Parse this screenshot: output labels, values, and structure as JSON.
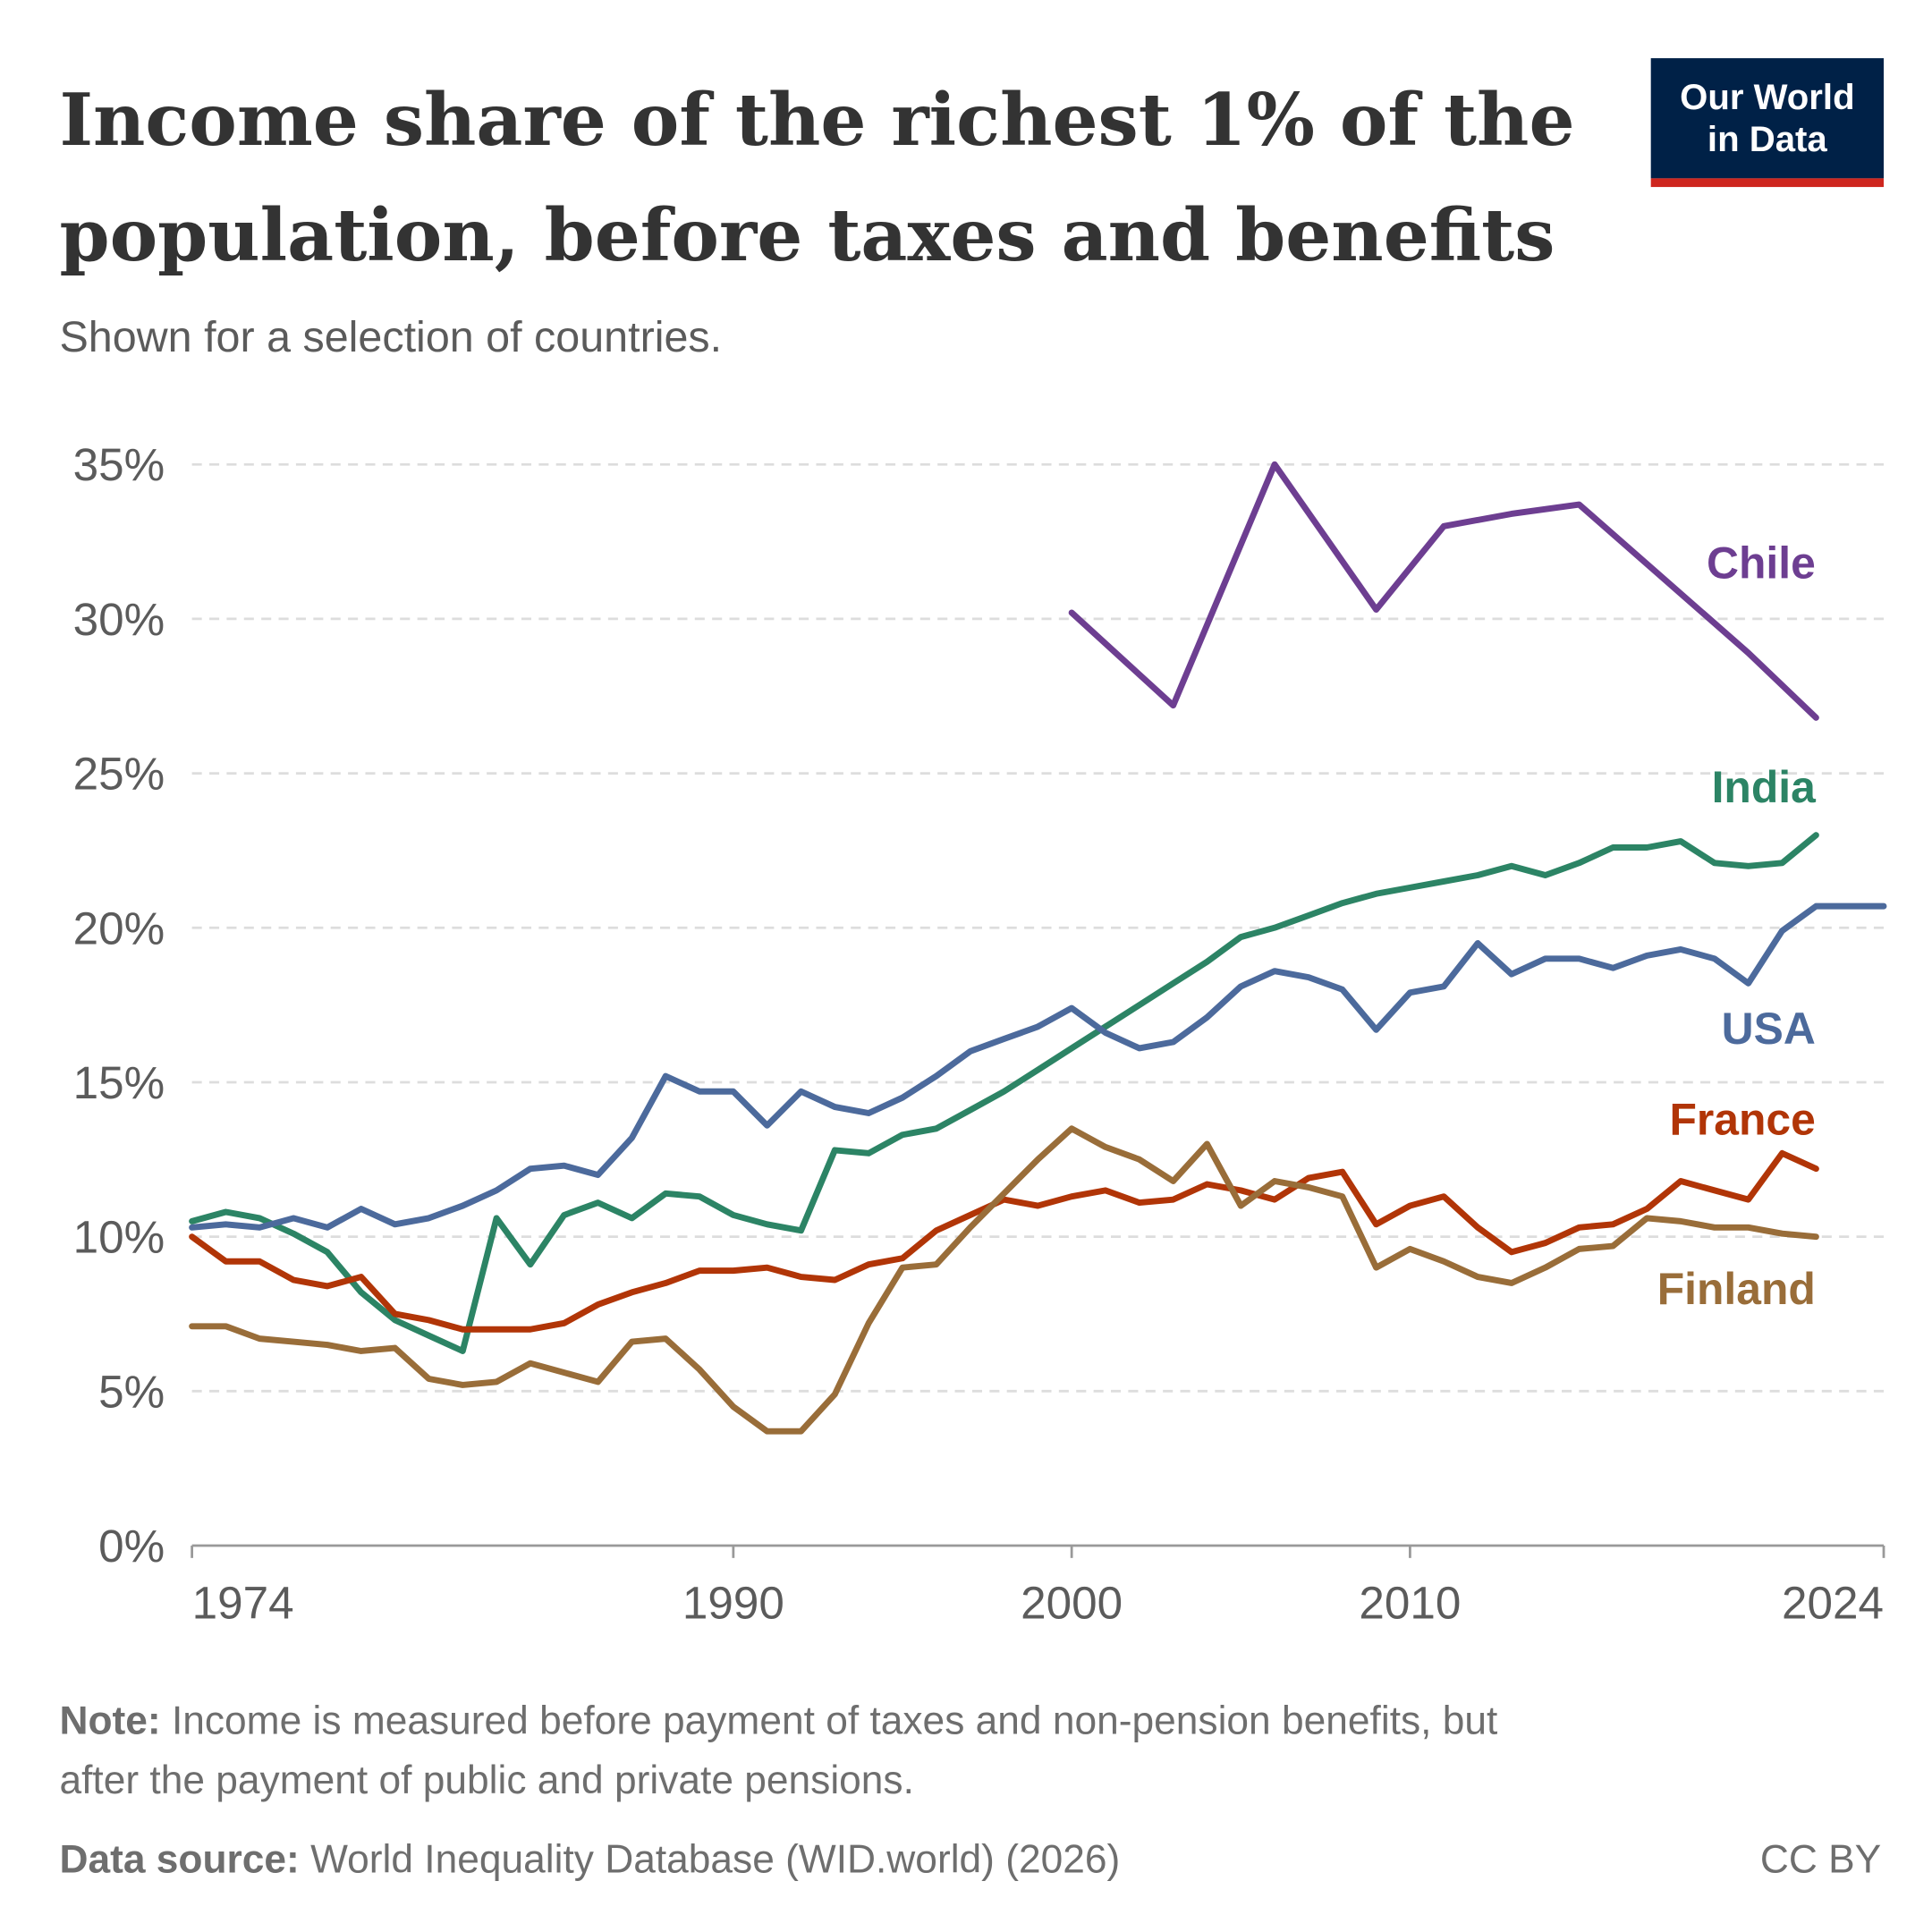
{
  "header": {
    "title_line1": "Income share of the richest 1% of the",
    "title_line2": "population, before taxes and benefits",
    "subtitle": "Shown for a selection of countries.",
    "logo_line1": "Our World",
    "logo_line2": "in Data"
  },
  "footer": {
    "note_label": "Note:",
    "note_line1": " Income is measured before payment of taxes and non-pension benefits, but",
    "note_line2": "after the payment of public and private pensions.",
    "source_label": "Data source:",
    "source": " World Inequality Database (WID.world) (2026)",
    "license": "CC BY"
  },
  "chart_data": {
    "type": "line",
    "title": "Income share of the richest 1% of the population, before taxes and benefits",
    "xlabel": "",
    "ylabel": "",
    "xlim": [
      1974,
      2024
    ],
    "ylim": [
      0,
      35
    ],
    "grid": true,
    "x_ticks": [
      "1974",
      "1990",
      "2000",
      "2010",
      "2024"
    ],
    "y_ticks": [
      "0%",
      "5%",
      "10%",
      "15%",
      "20%",
      "25%",
      "30%",
      "35%"
    ],
    "legend": "inline-right",
    "series": [
      {
        "name": "Chile",
        "color": "#6d3e91",
        "x": [
          2000,
          2003,
          2006,
          2009,
          2011,
          2013,
          2015,
          2020,
          2022
        ],
        "values": [
          30.2,
          27.2,
          35.0,
          30.3,
          33.0,
          33.4,
          33.7,
          28.9,
          26.8
        ]
      },
      {
        "name": "India",
        "color": "#2c8465",
        "x": [
          1974,
          1975,
          1976,
          1977,
          1978,
          1979,
          1980,
          1981,
          1982,
          1983,
          1984,
          1985,
          1986,
          1987,
          1988,
          1989,
          1990,
          1991,
          1992,
          1993,
          1994,
          1995,
          1996,
          1997,
          1998,
          1999,
          2000,
          2001,
          2002,
          2003,
          2004,
          2005,
          2006,
          2007,
          2008,
          2009,
          2010,
          2011,
          2012,
          2013,
          2014,
          2015,
          2016,
          2017,
          2018,
          2019,
          2020,
          2021,
          2022
        ],
        "values": [
          10.5,
          10.8,
          10.6,
          10.1,
          9.5,
          8.2,
          7.3,
          6.8,
          6.3,
          10.6,
          9.1,
          10.7,
          11.1,
          10.6,
          11.4,
          11.3,
          10.7,
          10.4,
          10.2,
          12.8,
          12.7,
          13.3,
          13.5,
          14.1,
          14.7,
          15.4,
          16.1,
          16.8,
          17.5,
          18.2,
          18.9,
          19.7,
          20.0,
          20.4,
          20.8,
          21.1,
          21.3,
          21.5,
          21.7,
          22.0,
          21.7,
          22.1,
          22.6,
          22.6,
          22.8,
          22.1,
          22.0,
          22.1,
          23.0
        ]
      },
      {
        "name": "USA",
        "color": "#4c6a9c",
        "x": [
          1974,
          1975,
          1976,
          1977,
          1978,
          1979,
          1980,
          1981,
          1982,
          1983,
          1984,
          1985,
          1986,
          1987,
          1988,
          1989,
          1990,
          1991,
          1992,
          1993,
          1994,
          1995,
          1996,
          1997,
          1998,
          1999,
          2000,
          2001,
          2002,
          2003,
          2004,
          2005,
          2006,
          2007,
          2008,
          2009,
          2010,
          2011,
          2012,
          2013,
          2014,
          2015,
          2016,
          2017,
          2018,
          2019,
          2020,
          2021,
          2022,
          2023,
          2024
        ],
        "values": [
          10.3,
          10.4,
          10.3,
          10.6,
          10.3,
          10.9,
          10.4,
          10.6,
          11.0,
          11.5,
          12.2,
          12.3,
          12.0,
          13.2,
          15.2,
          14.7,
          14.7,
          13.6,
          14.7,
          14.2,
          14.0,
          14.5,
          15.2,
          16.0,
          16.4,
          16.8,
          17.4,
          16.6,
          16.1,
          16.3,
          17.1,
          18.1,
          18.6,
          18.4,
          18.0,
          16.7,
          17.9,
          18.1,
          19.5,
          18.5,
          19.0,
          19.0,
          18.7,
          19.1,
          19.3,
          19.0,
          18.2,
          19.9,
          20.7,
          20.7,
          20.7
        ]
      },
      {
        "name": "France",
        "color": "#b13507",
        "x": [
          1974,
          1975,
          1976,
          1977,
          1978,
          1979,
          1980,
          1981,
          1982,
          1983,
          1984,
          1985,
          1986,
          1987,
          1988,
          1989,
          1990,
          1991,
          1992,
          1993,
          1994,
          1995,
          1996,
          1997,
          1998,
          1999,
          2000,
          2001,
          2002,
          2003,
          2004,
          2005,
          2006,
          2007,
          2008,
          2009,
          2010,
          2011,
          2012,
          2013,
          2014,
          2015,
          2016,
          2017,
          2018,
          2019,
          2020,
          2021,
          2022
        ],
        "values": [
          10.0,
          9.2,
          9.2,
          8.6,
          8.4,
          8.7,
          7.5,
          7.3,
          7.0,
          7.0,
          7.0,
          7.2,
          7.8,
          8.2,
          8.5,
          8.9,
          8.9,
          9.0,
          8.7,
          8.6,
          9.1,
          9.3,
          10.2,
          10.7,
          11.2,
          11.0,
          11.3,
          11.5,
          11.1,
          11.2,
          11.7,
          11.5,
          11.2,
          11.9,
          12.1,
          10.4,
          11.0,
          11.3,
          10.3,
          9.5,
          9.8,
          10.3,
          10.4,
          10.9,
          11.8,
          11.5,
          11.2,
          12.7,
          12.2
        ]
      },
      {
        "name": "Finland",
        "color": "#996d39",
        "x": [
          1974,
          1975,
          1976,
          1977,
          1978,
          1979,
          1980,
          1981,
          1982,
          1983,
          1984,
          1985,
          1986,
          1987,
          1988,
          1989,
          1990,
          1991,
          1992,
          1993,
          1994,
          1995,
          1996,
          1997,
          1998,
          1999,
          2000,
          2001,
          2002,
          2003,
          2004,
          2005,
          2006,
          2007,
          2008,
          2009,
          2010,
          2011,
          2012,
          2013,
          2014,
          2015,
          2016,
          2017,
          2018,
          2019,
          2020,
          2021,
          2022
        ],
        "values": [
          7.1,
          7.1,
          6.7,
          6.6,
          6.5,
          6.3,
          6.4,
          5.4,
          5.2,
          5.3,
          5.9,
          5.6,
          5.3,
          6.6,
          6.7,
          5.7,
          4.5,
          3.7,
          3.7,
          4.9,
          7.2,
          9.0,
          9.1,
          10.3,
          11.4,
          12.5,
          13.5,
          12.9,
          12.5,
          11.8,
          13.0,
          11.0,
          11.8,
          11.6,
          11.3,
          9.0,
          9.6,
          9.2,
          8.7,
          8.5,
          9.0,
          9.6,
          9.7,
          10.6,
          10.5,
          10.3,
          10.3,
          10.1,
          10.0
        ]
      }
    ]
  }
}
